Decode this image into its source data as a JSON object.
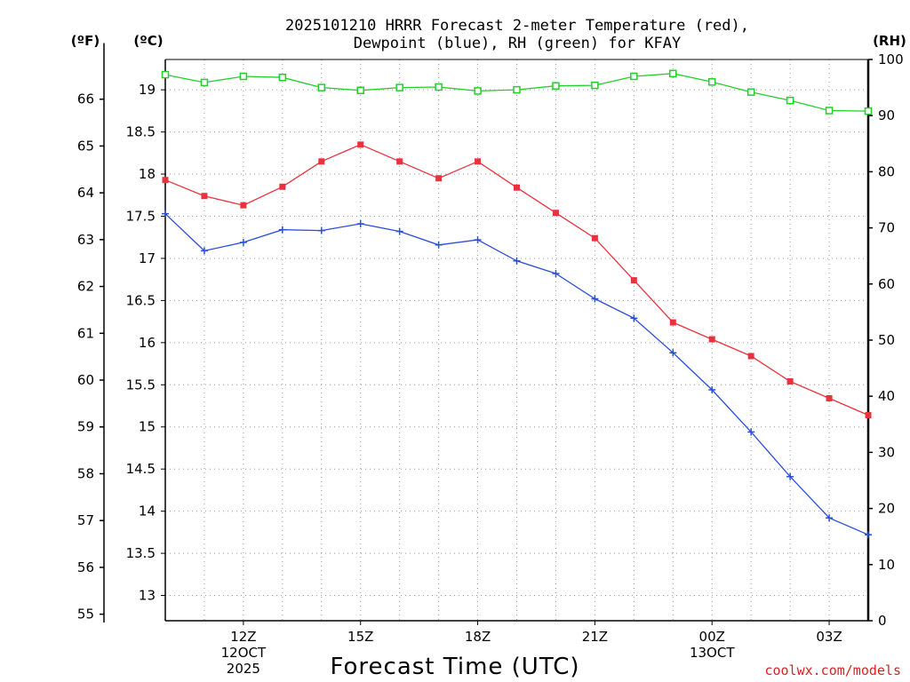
{
  "chart_data": {
    "type": "line",
    "title_line1": "2025101210 HRRR Forecast 2-meter Temperature (red),",
    "title_line2": "Dewpoint (blue), RH (green) for KFAY",
    "xlabel": "Forecast Time (UTC)",
    "credit": "coolwx.com/models",
    "unit_left_f": "(ºF)",
    "unit_left_c": "(ºC)",
    "unit_right": "(RH)",
    "x": [
      10,
      11,
      12,
      13,
      14,
      15,
      16,
      17,
      18,
      19,
      20,
      21,
      22,
      23,
      24,
      25,
      26,
      27,
      28
    ],
    "xlim": [
      10,
      28
    ],
    "x_ticks": [
      {
        "x": 12,
        "lines": [
          "12Z",
          "12OCT",
          "2025"
        ]
      },
      {
        "x": 15,
        "lines": [
          "15Z"
        ]
      },
      {
        "x": 18,
        "lines": [
          "18Z"
        ]
      },
      {
        "x": 21,
        "lines": [
          "21Z"
        ]
      },
      {
        "x": 24,
        "lines": [
          "00Z",
          "13OCT"
        ]
      },
      {
        "x": 27,
        "lines": [
          "03Z"
        ]
      }
    ],
    "ylim_c": [
      12.7,
      19.36
    ],
    "y_ticks_c": [
      13,
      13.5,
      14,
      14.5,
      15,
      15.5,
      16,
      16.5,
      17,
      17.5,
      18,
      18.5,
      19
    ],
    "y_ticks_f": [
      55,
      56,
      57,
      58,
      59,
      60,
      61,
      62,
      63,
      64,
      65,
      66
    ],
    "ylim_rh": [
      0,
      100
    ],
    "y_ticks_rh": [
      0,
      10,
      20,
      30,
      40,
      50,
      60,
      70,
      80,
      90,
      100
    ],
    "series": [
      {
        "name": "Temperature",
        "color": "#e8333d",
        "marker": "filled-square",
        "axis": "c",
        "values": [
          17.93,
          17.74,
          17.63,
          17.85,
          18.15,
          18.35,
          18.15,
          17.95,
          18.15,
          17.84,
          17.54,
          17.24,
          16.74,
          16.24,
          16.04,
          15.84,
          15.54,
          15.34,
          15.14
        ]
      },
      {
        "name": "Dewpoint",
        "color": "#2a4fd9",
        "marker": "plus",
        "axis": "c",
        "values": [
          17.53,
          17.09,
          17.19,
          17.34,
          17.33,
          17.41,
          17.32,
          17.16,
          17.22,
          16.97,
          16.82,
          16.52,
          16.29,
          15.88,
          15.44,
          14.94,
          14.41,
          13.92,
          13.72
        ]
      },
      {
        "name": "RH",
        "color": "#22d02a",
        "marker": "open-square",
        "axis": "rh",
        "values": [
          97.3,
          95.9,
          97.0,
          96.8,
          95.0,
          94.5,
          95.0,
          95.1,
          94.4,
          94.6,
          95.3,
          95.4,
          97.0,
          97.5,
          96.0,
          94.2,
          92.7,
          90.9,
          90.8
        ]
      }
    ]
  }
}
